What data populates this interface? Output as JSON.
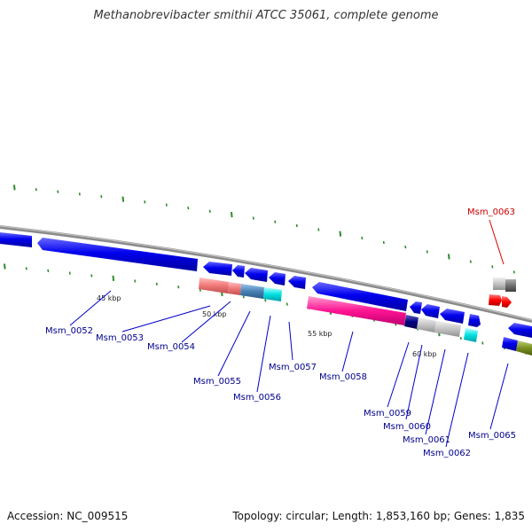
{
  "title": "Methanobrevibacter smithii ATCC 35061, complete genome",
  "footer": {
    "accession": "Accession: NC_009515",
    "topology": "Topology: circular; Length: 1,853,160 bp; Genes: 1,835"
  },
  "colors": {
    "backbone": "#8a8a8a",
    "gene_forward": "#0000ee",
    "tick": "#2e8b2e",
    "label_default": "#00008b",
    "label_highlight": "#cc0000",
    "leader_default": "#0000cc",
    "leader_highlight": "#dd0000"
  },
  "kbp_marks": [
    {
      "label": "45 kbp"
    },
    {
      "label": "50 kbp"
    },
    {
      "label": "55 kbp"
    },
    {
      "label": "60 kbp"
    }
  ],
  "gene_labels": [
    {
      "label": "Msm_0052",
      "highlight": false
    },
    {
      "label": "Msm_0053",
      "highlight": false
    },
    {
      "label": "Msm_0054",
      "highlight": false
    },
    {
      "label": "Msm_0055",
      "highlight": false
    },
    {
      "label": "Msm_0056",
      "highlight": false
    },
    {
      "label": "Msm_0057",
      "highlight": false
    },
    {
      "label": "Msm_0058",
      "highlight": false
    },
    {
      "label": "Msm_0059",
      "highlight": false
    },
    {
      "label": "Msm_0060",
      "highlight": false
    },
    {
      "label": "Msm_0061",
      "highlight": false
    },
    {
      "label": "Msm_0062",
      "highlight": false
    },
    {
      "label": "Msm_0063",
      "highlight": true
    },
    {
      "label": "Msm_0065",
      "highlight": false
    }
  ]
}
